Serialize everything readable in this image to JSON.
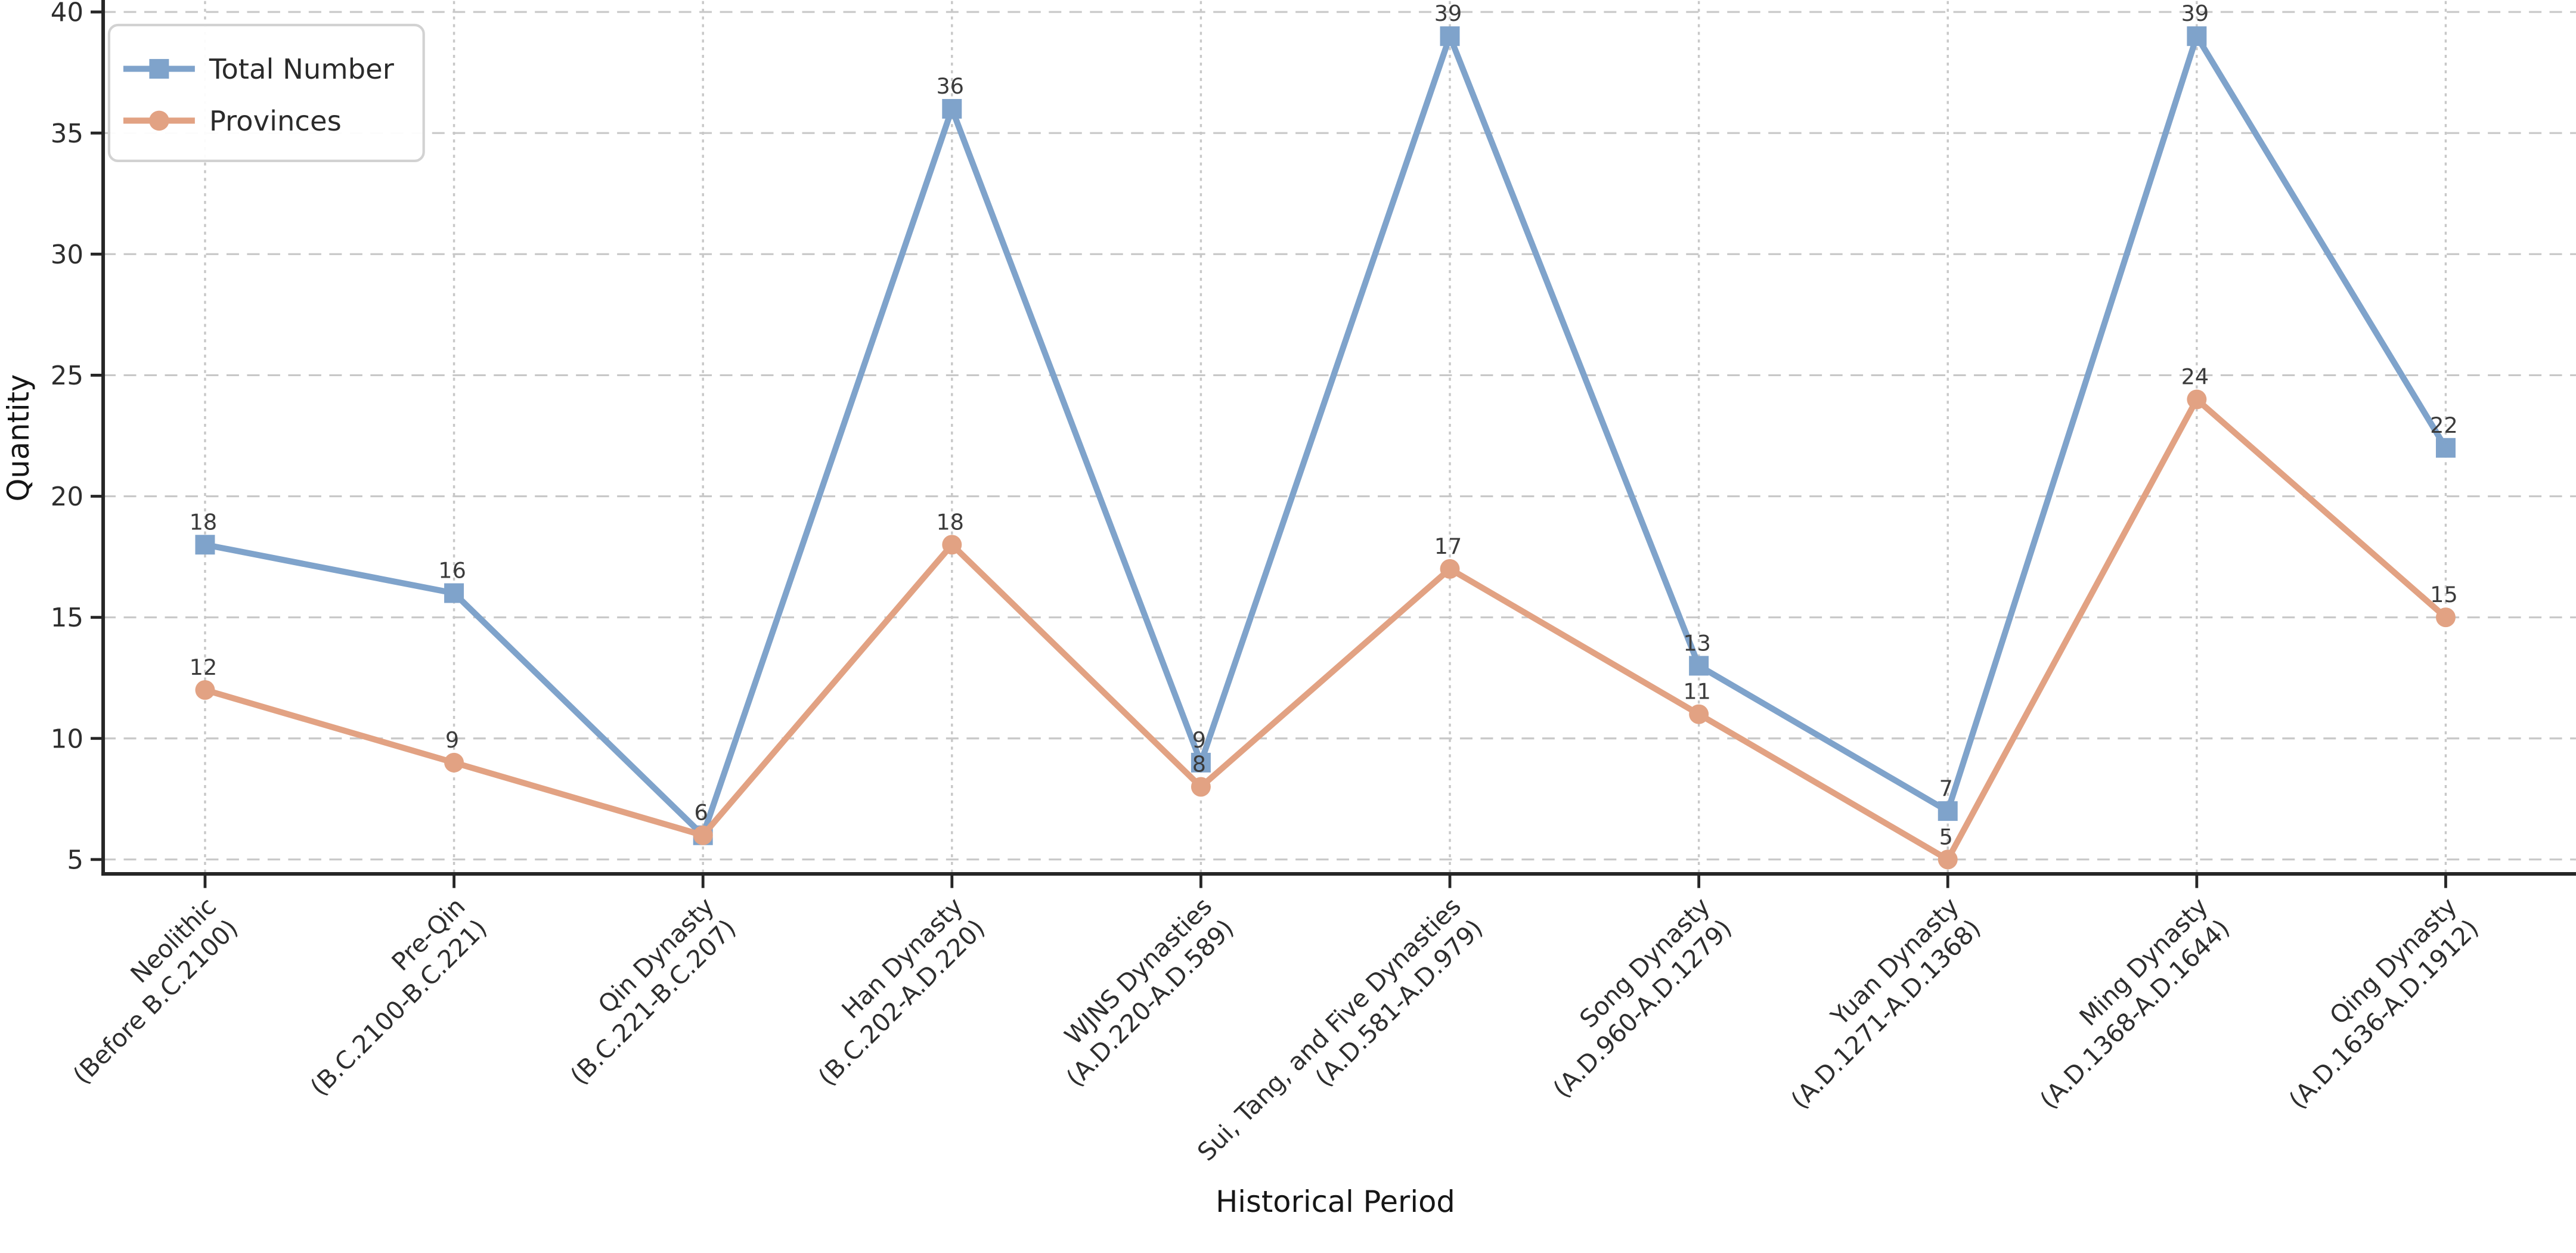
{
  "figure": {
    "background": "#ffffff"
  },
  "chart_data": {
    "type": "line",
    "title": "",
    "xlabel": "Historical Period",
    "ylabel": "Quantity",
    "categories": [
      {
        "line1": "Neolithic",
        "line2": "(Before B.C.2100)"
      },
      {
        "line1": "Pre-Qin",
        "line2": "(B.C.2100-B.C.221)"
      },
      {
        "line1": "Qin Dynasty",
        "line2": "(B.C.221-B.C.207)"
      },
      {
        "line1": "Han Dynasty",
        "line2": "(B.C.202-A.D.220)"
      },
      {
        "line1": "WJNS Dynasties",
        "line2": "(A.D.220-A.D.589)"
      },
      {
        "line1": "Sui, Tang, and Five Dynasties",
        "line2": "(A.D.581-A.D.979)"
      },
      {
        "line1": "Song Dynasty",
        "line2": "(A.D.960-A.D.1279)"
      },
      {
        "line1": "Yuan Dynasty",
        "line2": "(A.D.1271-A.D.1368)"
      },
      {
        "line1": "Ming Dynasty",
        "line2": "(A.D.1368-A.D.1644)"
      },
      {
        "line1": "Qing Dynasty",
        "line2": "(A.D.1636-A.D.1912)"
      }
    ],
    "series": [
      {
        "name": "Total Number",
        "marker": "square",
        "color": "#7fa3cb",
        "values": [
          18,
          16,
          6,
          36,
          9,
          39,
          13,
          7,
          39,
          22
        ]
      },
      {
        "name": "Provinces",
        "marker": "circle",
        "color": "#e2a283",
        "values": [
          12,
          9,
          6,
          18,
          8,
          17,
          11,
          5,
          24,
          15
        ]
      }
    ],
    "yticks": [
      5,
      10,
      15,
      20,
      25,
      30,
      35,
      40
    ],
    "ylim": [
      4.45,
      40.45
    ],
    "grid": true,
    "legend_position": "upper left",
    "point_labels_visible": true,
    "point_label_color": "#3b3b3b",
    "tick_label_color": "#2e2e2e"
  }
}
